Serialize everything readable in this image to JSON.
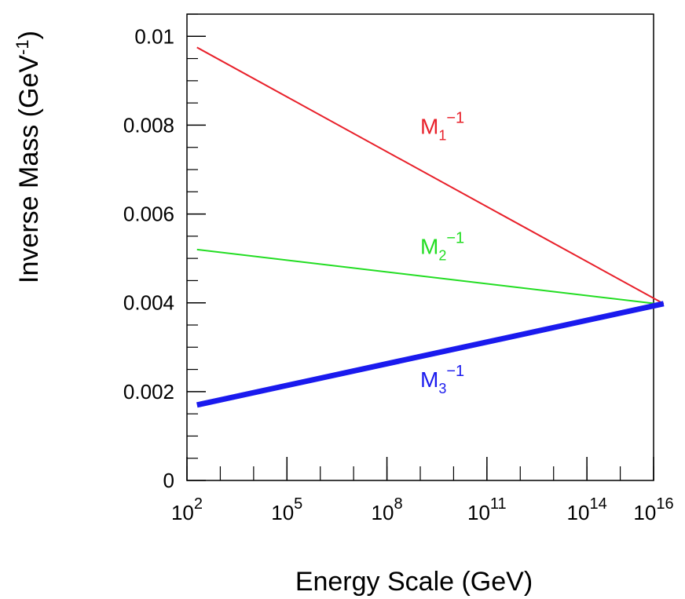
{
  "chart_data": {
    "type": "line",
    "xlabel": "Energy Scale (GeV)",
    "ylabel_main": "Inverse Mass (GeV",
    "ylabel_sup": "-1",
    "ylabel_close": ")",
    "x_scale": "log",
    "xlim": [
      100,
      10000000000000000
    ],
    "ylim": [
      0,
      0.0105
    ],
    "grid": false,
    "x_ticks": [
      {
        "base": "10",
        "exp": "2",
        "value": 100
      },
      {
        "base": "10",
        "exp": "5",
        "value": 100000
      },
      {
        "base": "10",
        "exp": "8",
        "value": 100000000
      },
      {
        "base": "10",
        "exp": "11",
        "value": 100000000000
      },
      {
        "base": "10",
        "exp": "14",
        "value": 100000000000000
      },
      {
        "base": "10",
        "exp": "16",
        "value": 10000000000000000
      }
    ],
    "y_ticks": [
      {
        "label": "0",
        "value": 0
      },
      {
        "label": "0.002",
        "value": 0.002
      },
      {
        "label": "0.004",
        "value": 0.004
      },
      {
        "label": "0.006",
        "value": 0.006
      },
      {
        "label": "0.008",
        "value": 0.008
      },
      {
        "label": "0.01",
        "value": 0.01
      }
    ],
    "series": [
      {
        "name": "M1-1",
        "label_main": "M",
        "label_sub": "1",
        "label_sup": "−1",
        "color": "#e8202a",
        "x": [
          200,
          20000000000000000
        ],
        "y": [
          0.00975,
          0.00398
        ],
        "label_at": {
          "x": 1000000000,
          "y": 0.0078
        }
      },
      {
        "name": "M2-1",
        "label_main": "M",
        "label_sub": "2",
        "label_sup": "−1",
        "color": "#22dd22",
        "x": [
          200,
          20000000000000000
        ],
        "y": [
          0.0052,
          0.00396
        ],
        "label_at": {
          "x": 1000000000,
          "y": 0.0051
        }
      },
      {
        "name": "M3-1",
        "label_main": "M",
        "label_sub": "3",
        "label_sup": "−1",
        "color": "#1a1aee",
        "x": [
          200,
          20000000000000000
        ],
        "y": [
          0.0017,
          0.00398
        ],
        "label_at": {
          "x": 1000000000,
          "y": 0.0021
        }
      }
    ]
  }
}
